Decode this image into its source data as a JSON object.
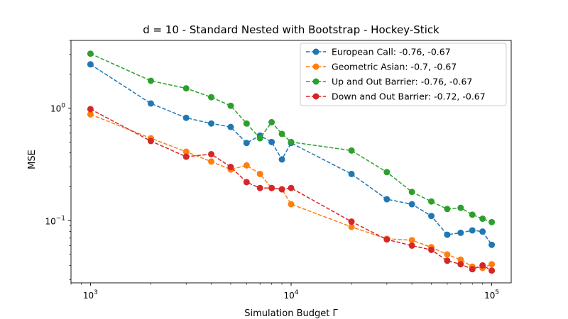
{
  "chart_data": {
    "type": "line",
    "title": "d = 10 - Standard Nested with Bootstrap - Hockey-Stick",
    "xlabel": "Simulation Budget Γ",
    "ylabel": "MSE",
    "xscale": "log",
    "yscale": "log",
    "xlim": [
      800,
      125000
    ],
    "ylim": [
      0.028,
      4.0
    ],
    "x_ticks": [
      {
        "base": "10",
        "exp": "3"
      },
      {
        "base": "10",
        "exp": "4"
      },
      {
        "base": "10",
        "exp": "5"
      }
    ],
    "y_ticks": [
      {
        "base": "10",
        "exp": "−1"
      },
      {
        "base": "10",
        "exp": "0"
      }
    ],
    "grid": false,
    "legend_position": "top-right",
    "x": [
      1000,
      2000,
      3000,
      4000,
      5000,
      6000,
      7000,
      8000,
      9000,
      10000,
      20000,
      30000,
      40000,
      50000,
      60000,
      70000,
      80000,
      90000,
      100000
    ],
    "series": [
      {
        "name": "European Call: -0.76, -0.67",
        "color": "#1f77b4",
        "values": [
          2.45,
          1.1,
          0.82,
          0.73,
          0.68,
          0.49,
          0.57,
          0.5,
          0.35,
          0.49,
          0.26,
          0.155,
          0.14,
          0.11,
          0.075,
          0.078,
          0.082,
          0.08,
          0.061
        ]
      },
      {
        "name": "Geometric Asian: -0.7, -0.67",
        "color": "#ff7f0e",
        "values": [
          0.88,
          0.54,
          0.41,
          0.335,
          0.285,
          0.31,
          0.26,
          0.195,
          0.19,
          0.14,
          0.088,
          0.069,
          0.067,
          0.058,
          0.05,
          0.045,
          0.039,
          0.038,
          0.041
        ]
      },
      {
        "name": "Up and Out Barrier: -0.76, -0.67",
        "color": "#2ca02c",
        "values": [
          3.05,
          1.75,
          1.5,
          1.25,
          1.05,
          0.73,
          0.54,
          0.75,
          0.59,
          0.5,
          0.42,
          0.27,
          0.18,
          0.148,
          0.127,
          0.13,
          0.113,
          0.104,
          0.097
        ]
      },
      {
        "name": "Down and Out Barrier: -0.72, -0.67",
        "color": "#d62728",
        "values": [
          0.98,
          0.51,
          0.37,
          0.39,
          0.3,
          0.22,
          0.195,
          0.195,
          0.19,
          0.195,
          0.098,
          0.068,
          0.06,
          0.055,
          0.044,
          0.041,
          0.037,
          0.04,
          0.036
        ]
      }
    ]
  }
}
